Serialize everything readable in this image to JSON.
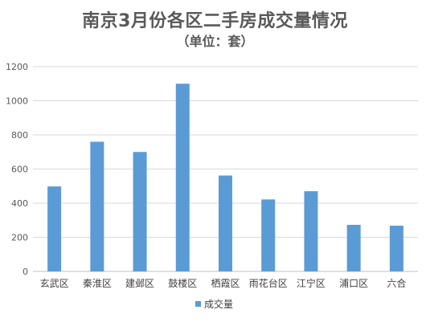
{
  "chart_data": {
    "type": "bar",
    "title": "南京3月份各区二手房成交量情况",
    "subtitle": "（单位：套）",
    "categories": [
      "玄武区",
      "秦淮区",
      "建邺区",
      "鼓楼区",
      "栖霞区",
      "雨花台区",
      "江宁区",
      "浦口区",
      "六合"
    ],
    "series": [
      {
        "name": "成交量",
        "values": [
          498,
          760,
          700,
          1100,
          562,
          422,
          470,
          273,
          268
        ],
        "color": "#5b9bd5"
      }
    ],
    "ylim": [
      0,
      1200
    ],
    "yticks": [
      0,
      200,
      400,
      600,
      800,
      1000,
      1200
    ],
    "grid": true,
    "legend": "bottom-center"
  }
}
